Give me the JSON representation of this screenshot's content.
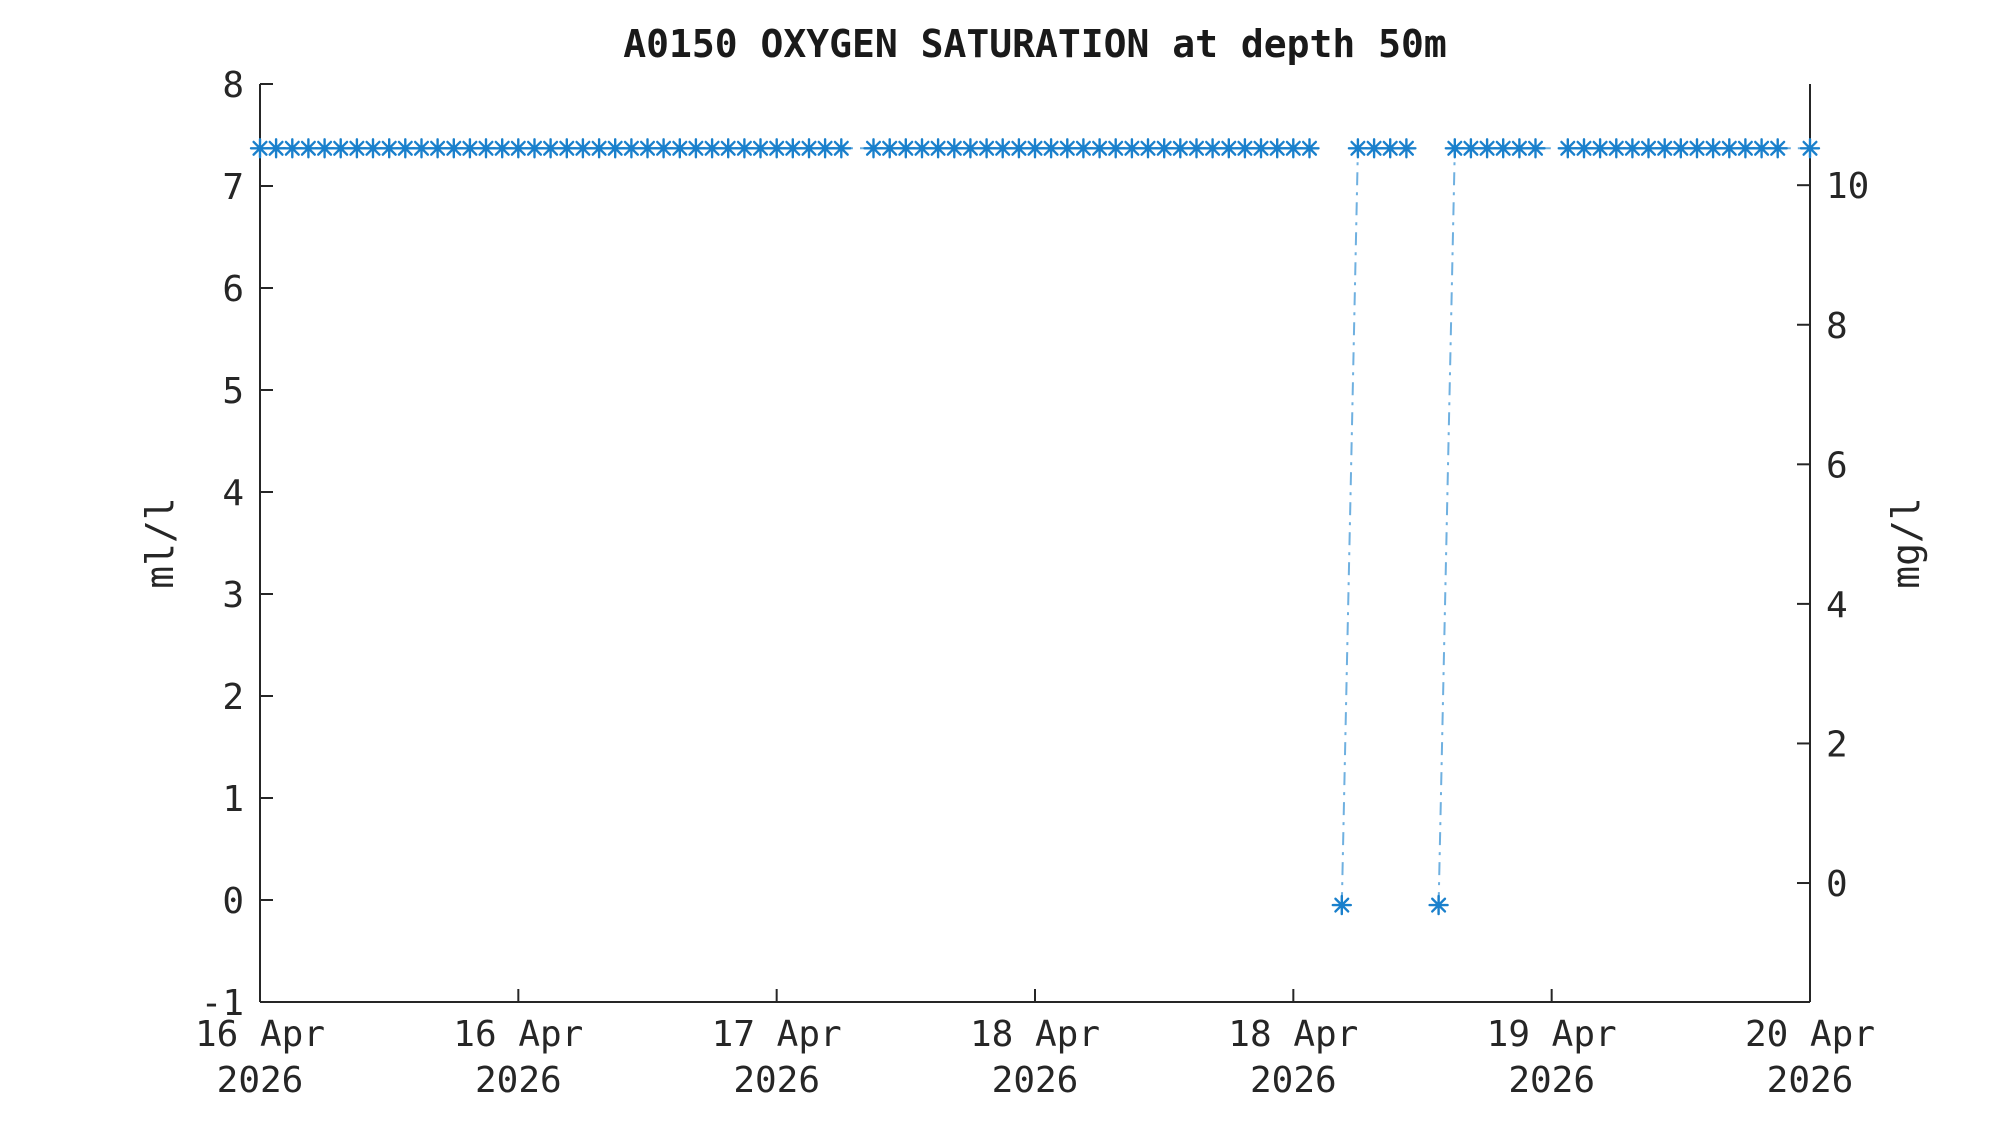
{
  "chart_data": {
    "type": "line",
    "title": "A0150 OXYGEN SATURATION at depth 50m",
    "ylabel_left": "ml/l",
    "ylabel_right": "mg/l",
    "ylim_left": [
      -1,
      8
    ],
    "yticks_left": [
      -1,
      0,
      1,
      2,
      3,
      4,
      5,
      6,
      7,
      8
    ],
    "ylim_right": [
      -1.705,
      11.45
    ],
    "yticks_right": [
      0,
      2,
      4,
      6,
      8,
      10
    ],
    "grid": false,
    "legend": "none",
    "x_axis": {
      "unit": "hours since 16 Apr 2026 00:00",
      "range_hours": [
        0,
        96
      ],
      "tick_hours": [
        0,
        16,
        32,
        48,
        64,
        80,
        96
      ],
      "tick_labels": [
        [
          "16 Apr",
          "2026"
        ],
        [
          "16 Apr",
          "2026"
        ],
        [
          "17 Apr",
          "2026"
        ],
        [
          "18 Apr",
          "2026"
        ],
        [
          "18 Apr",
          "2026"
        ],
        [
          "19 Apr",
          "2026"
        ],
        [
          "20 Apr",
          "2026"
        ]
      ]
    },
    "colors": {
      "marker": "#1a80cc",
      "line": "#6fb0e0",
      "axis": "#262626",
      "text": "#262626"
    },
    "series": [
      {
        "name": "oxygen saturation",
        "marker": "asterisk",
        "line_style": "dash-dot",
        "points": [
          [
            0,
            7.37
          ],
          [
            1,
            7.37
          ],
          [
            2,
            7.37
          ],
          [
            3,
            7.37
          ],
          [
            4,
            7.37
          ],
          [
            5,
            7.37
          ],
          [
            6,
            7.37
          ],
          [
            7,
            7.37
          ],
          [
            8,
            7.37
          ],
          [
            9,
            7.37
          ],
          [
            10,
            7.37
          ],
          [
            11,
            7.37
          ],
          [
            12,
            7.37
          ],
          [
            13,
            7.37
          ],
          [
            14,
            7.37
          ],
          [
            15,
            7.37
          ],
          [
            16,
            7.37
          ],
          [
            17,
            7.37
          ],
          [
            18,
            7.37
          ],
          [
            19,
            7.37
          ],
          [
            20,
            7.37
          ],
          [
            21,
            7.37
          ],
          [
            22,
            7.37
          ],
          [
            23,
            7.37
          ],
          [
            24,
            7.37
          ],
          [
            25,
            7.37
          ],
          [
            26,
            7.37
          ],
          [
            27,
            7.37
          ],
          [
            28,
            7.37
          ],
          [
            29,
            7.37
          ],
          [
            30,
            7.37
          ],
          [
            31,
            7.37
          ],
          [
            32,
            7.37
          ],
          [
            33,
            7.37
          ],
          [
            34,
            7.37
          ],
          [
            35,
            7.37
          ],
          [
            36,
            7.37
          ],
          [
            38,
            7.37
          ],
          [
            39,
            7.37
          ],
          [
            40,
            7.37
          ],
          [
            41,
            7.37
          ],
          [
            42,
            7.37
          ],
          [
            43,
            7.37
          ],
          [
            44,
            7.37
          ],
          [
            45,
            7.37
          ],
          [
            46,
            7.37
          ],
          [
            47,
            7.37
          ],
          [
            48,
            7.37
          ],
          [
            49,
            7.37
          ],
          [
            50,
            7.37
          ],
          [
            51,
            7.37
          ],
          [
            52,
            7.37
          ],
          [
            53,
            7.37
          ],
          [
            54,
            7.37
          ],
          [
            55,
            7.37
          ],
          [
            56,
            7.37
          ],
          [
            57,
            7.37
          ],
          [
            58,
            7.37
          ],
          [
            59,
            7.37
          ],
          [
            60,
            7.37
          ],
          [
            61,
            7.37
          ],
          [
            62,
            7.37
          ],
          [
            63,
            7.37
          ],
          [
            64,
            7.37
          ],
          [
            65,
            7.37
          ],
          [
            66,
            null
          ],
          [
            67,
            -0.05
          ],
          [
            68,
            7.37
          ],
          [
            69,
            7.37
          ],
          [
            70,
            7.37
          ],
          [
            71,
            7.37
          ],
          [
            72,
            null
          ],
          [
            73,
            -0.05
          ],
          [
            74,
            7.37
          ],
          [
            75,
            7.37
          ],
          [
            76,
            7.37
          ],
          [
            77,
            7.37
          ],
          [
            78,
            7.37
          ],
          [
            79,
            7.37
          ],
          [
            81,
            7.37
          ],
          [
            82,
            7.37
          ],
          [
            83,
            7.37
          ],
          [
            84,
            7.37
          ],
          [
            85,
            7.37
          ],
          [
            86,
            7.37
          ],
          [
            87,
            7.37
          ],
          [
            88,
            7.37
          ],
          [
            89,
            7.37
          ],
          [
            90,
            7.37
          ],
          [
            91,
            7.37
          ],
          [
            92,
            7.37
          ],
          [
            93,
            7.37
          ],
          [
            94,
            7.37
          ],
          [
            96,
            7.37
          ]
        ]
      }
    ]
  }
}
